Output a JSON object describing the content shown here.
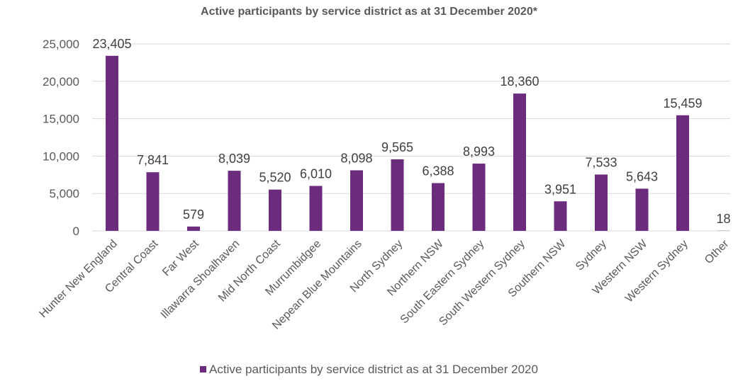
{
  "chart_data": {
    "type": "bar",
    "title": "Active participants by service district as at 31 December 2020*",
    "categories": [
      "Hunter New England",
      "Central Coast",
      "Far West",
      "Illawarra Shoalhaven",
      "Mid North Coast",
      "Murrumbidgee",
      "Nepean Blue Mountains",
      "North Sydney",
      "Northern NSW",
      "South Eastern Sydney",
      "South Western Sydney",
      "Southern NSW",
      "Sydney",
      "Western NSW",
      "Western Sydney",
      "Other"
    ],
    "series": [
      {
        "name": "Active participants by service district as at 31 December 2020",
        "values": [
          23405,
          7841,
          579,
          8039,
          5520,
          6010,
          8098,
          9565,
          6388,
          8993,
          18360,
          3951,
          7533,
          5643,
          15459,
          18
        ]
      }
    ],
    "data_labels": [
      "23,405",
      "7,841",
      "579",
      "8,039",
      "5,520",
      "6,010",
      "8,098",
      "9,565",
      "6,388",
      "8,993",
      "18,360",
      "3,951",
      "7,533",
      "5,643",
      "15,459",
      "18"
    ],
    "ylim": [
      0,
      25000
    ],
    "yticks": [
      0,
      5000,
      10000,
      15000,
      20000,
      25000
    ],
    "ytick_labels": [
      "0",
      "5,000",
      "10,000",
      "15,000",
      "20,000",
      "25,000"
    ],
    "grid": true,
    "legend_position": "bottom",
    "bar_color": "#6b2c7e",
    "grid_color": "#d9d9d9"
  }
}
